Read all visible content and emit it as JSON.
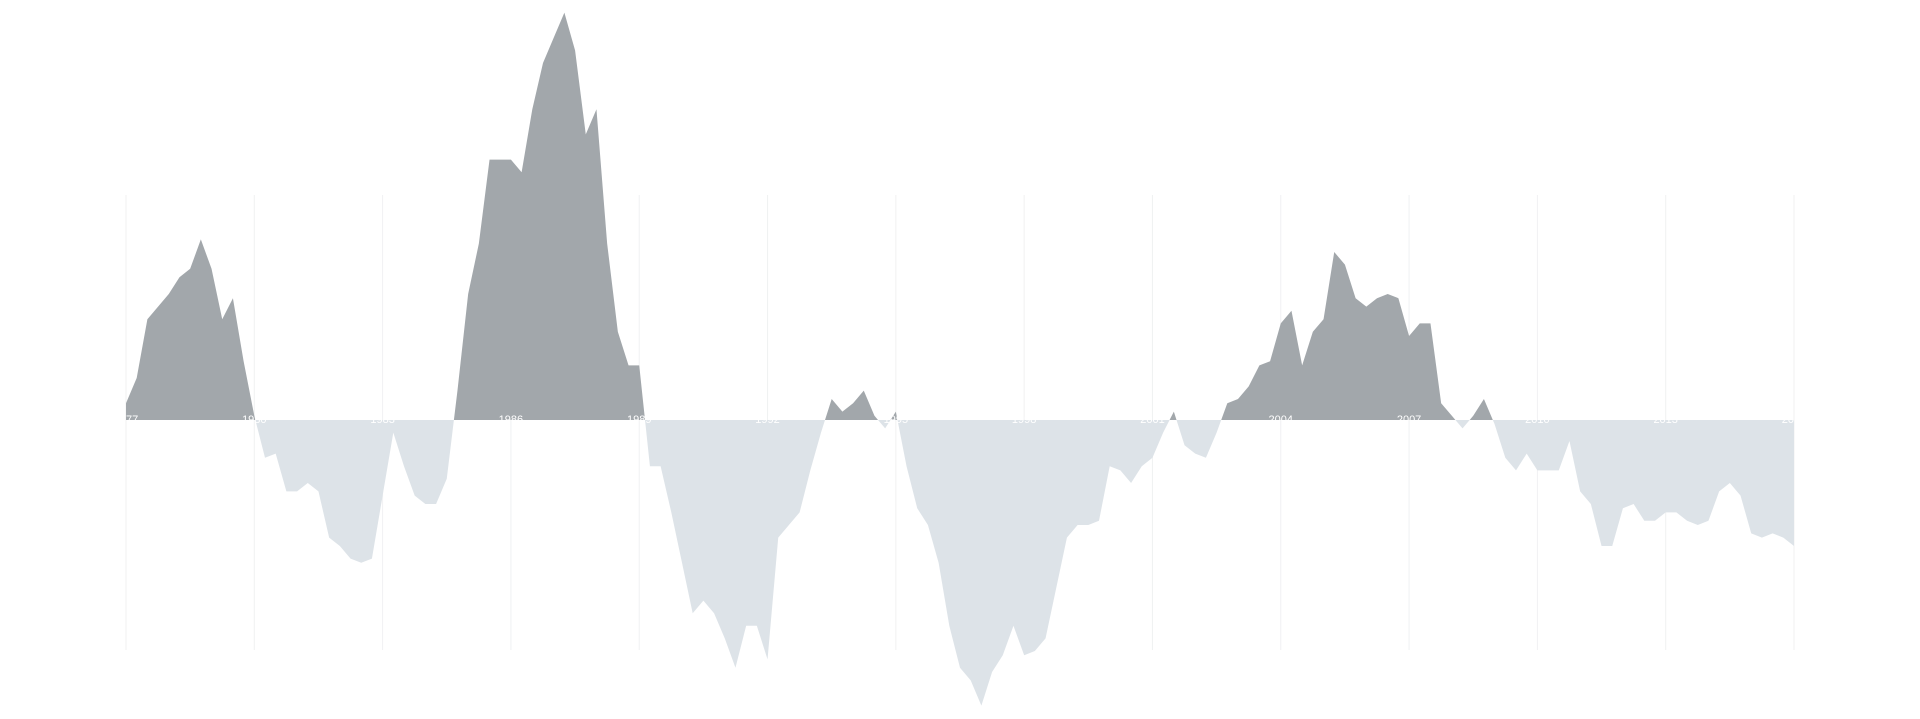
{
  "chart_data": {
    "type": "area",
    "x": [
      1977,
      1977.25,
      1977.5,
      1977.75,
      1978,
      1978.25,
      1978.5,
      1978.75,
      1979,
      1979.25,
      1979.5,
      1979.75,
      1980,
      1980.25,
      1980.5,
      1980.75,
      1981,
      1981.25,
      1981.5,
      1981.75,
      1982,
      1982.25,
      1982.5,
      1982.75,
      1983,
      1983.25,
      1983.5,
      1983.75,
      1984,
      1984.25,
      1984.5,
      1984.75,
      1985,
      1985.25,
      1985.5,
      1985.75,
      1986,
      1986.25,
      1986.5,
      1986.75,
      1987,
      1987.25,
      1987.5,
      1987.75,
      1988,
      1988.25,
      1988.5,
      1988.75,
      1989,
      1989.25,
      1989.5,
      1989.75,
      1990,
      1990.25,
      1990.5,
      1990.75,
      1991,
      1991.25,
      1991.5,
      1991.75,
      1992,
      1992.25,
      1992.5,
      1992.75,
      1993,
      1993.25,
      1993.5,
      1993.75,
      1994,
      1994.25,
      1994.5,
      1994.75,
      1995,
      1995.25,
      1995.5,
      1995.75,
      1996,
      1996.25,
      1996.5,
      1996.75,
      1997,
      1997.25,
      1997.5,
      1997.75,
      1998,
      1998.25,
      1998.5,
      1998.75,
      1999,
      1999.25,
      1999.5,
      1999.75,
      2000,
      2000.25,
      2000.5,
      2000.75,
      2001,
      2001.25,
      2001.5,
      2001.75,
      2002,
      2002.25,
      2002.5,
      2002.75,
      2003,
      2003.25,
      2003.5,
      2003.75,
      2004,
      2004.25,
      2004.5,
      2004.75,
      2005,
      2005.25,
      2005.5,
      2005.75,
      2006,
      2006.25,
      2006.5,
      2006.75,
      2007,
      2007.25,
      2007.5,
      2007.75,
      2008,
      2008.25,
      2008.5,
      2008.75,
      2009,
      2009.25,
      2009.5,
      2009.75,
      2010,
      2010.25,
      2010.5,
      2010.75,
      2011,
      2011.25,
      2011.5,
      2011.75,
      2012,
      2012.25,
      2012.5,
      2012.75,
      2013,
      2013.25,
      2013.5,
      2013.75,
      2014,
      2014.25,
      2014.5,
      2014.75,
      2015,
      2015.25,
      2015.5,
      2015.75,
      2016
    ],
    "values": [
      4,
      10,
      24,
      27,
      30,
      34,
      36,
      43,
      36,
      24,
      29,
      14,
      1,
      -9,
      -8,
      -17,
      -17,
      -15,
      -17,
      -28,
      -30,
      -33,
      -34,
      -33,
      -18,
      -3,
      -11,
      -18,
      -20,
      -20,
      -14,
      7,
      30,
      42,
      62,
      62,
      62,
      59,
      74,
      85,
      91,
      97,
      88,
      68,
      74,
      42,
      21,
      13,
      13,
      -11,
      -11,
      -22,
      -34,
      -46,
      -43,
      -46,
      -52,
      -59,
      -49,
      -49,
      -57,
      -28,
      -25,
      -22,
      -12,
      -3,
      5,
      2,
      4,
      7,
      1,
      -2,
      2,
      -11,
      -21,
      -25,
      -34,
      -49,
      -59,
      -62,
      -68,
      -60,
      -56,
      -49,
      -56,
      -55,
      -52,
      -40,
      -28,
      -25,
      -25,
      -24,
      -11,
      -12,
      -15,
      -11,
      -9,
      -3,
      2,
      -6,
      -8,
      -9,
      -3,
      4,
      5,
      8,
      13,
      14,
      23,
      26,
      13,
      21,
      24,
      40,
      37,
      29,
      27,
      29,
      30,
      29,
      20,
      23,
      23,
      4,
      1,
      -2,
      1,
      5,
      -1,
      -9,
      -12,
      -8,
      -12,
      -12,
      -12,
      -5,
      -17,
      -20,
      -30,
      -30,
      -21,
      -20,
      -24,
      -24,
      -22,
      -22,
      -24,
      -25,
      -24,
      -17,
      -15,
      -18,
      -27,
      -28,
      -27,
      -28,
      -30
    ],
    "color": "#a2a7ab",
    "negative_color": "#dde3e8",
    "xlim": [
      1977,
      2016
    ],
    "xticks": [
      1977,
      1980,
      1983,
      1986,
      1989,
      1992,
      1995,
      1998,
      2001,
      2004,
      2007,
      2010,
      2013,
      2016
    ],
    "ylim": [
      -70,
      100
    ],
    "grid": true
  }
}
